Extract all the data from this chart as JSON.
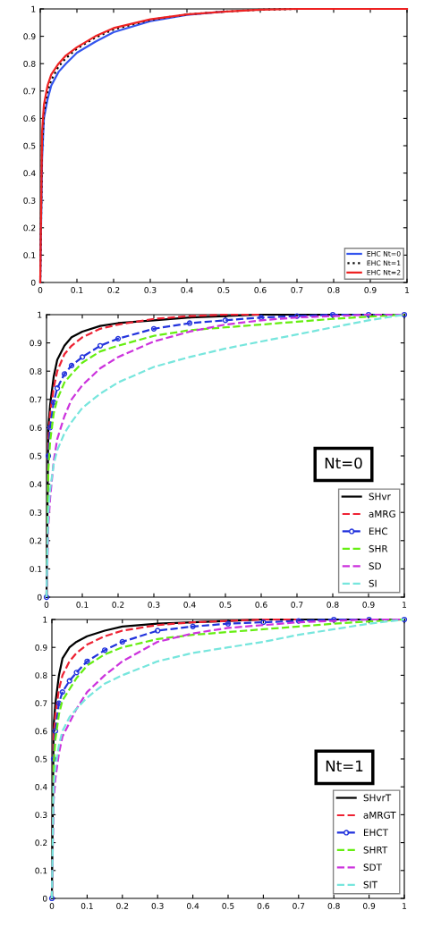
{
  "chart_data": [
    {
      "type": "line",
      "x": [
        0,
        0.005,
        0.01,
        0.02,
        0.03,
        0.05,
        0.07,
        0.1,
        0.15,
        0.2,
        0.3,
        0.4,
        0.5,
        0.6,
        0.7,
        0.8,
        0.9,
        1
      ],
      "xlim": [
        0,
        1
      ],
      "ylim": [
        0,
        1
      ],
      "xticks": [
        0,
        0.1,
        0.2,
        0.3,
        0.4,
        0.5,
        0.6,
        0.7,
        0.8,
        0.9,
        1
      ],
      "yticks": [
        0,
        0.1,
        0.2,
        0.3,
        0.4,
        0.5,
        0.6,
        0.7,
        0.8,
        0.9,
        1
      ],
      "grid": false,
      "legend": "bottom right",
      "series": [
        {
          "name": "EHC Nt=0",
          "color": "#3355ee",
          "line_style": "solid",
          "values": [
            0,
            0.45,
            0.6,
            0.67,
            0.72,
            0.77,
            0.8,
            0.84,
            0.88,
            0.915,
            0.955,
            0.978,
            0.99,
            null,
            null,
            null,
            null,
            null
          ]
        },
        {
          "name": "EHC Nt=1",
          "color": "#000000",
          "line_style": "dotted",
          "values": [
            0,
            0.5,
            0.62,
            0.7,
            0.74,
            0.79,
            0.82,
            0.855,
            0.895,
            0.925,
            0.96,
            0.98,
            0.99,
            0.997,
            1,
            1,
            1,
            1
          ]
        },
        {
          "name": "EHC Nt=2",
          "color": "#ee2222",
          "line_style": "solid",
          "values": [
            0,
            0.55,
            0.65,
            0.72,
            0.76,
            0.8,
            0.83,
            0.86,
            0.9,
            0.93,
            0.962,
            0.98,
            0.99,
            0.997,
            1,
            1,
            1,
            1
          ]
        }
      ]
    },
    {
      "type": "line",
      "x": [
        0,
        0.005,
        0.01,
        0.02,
        0.03,
        0.05,
        0.07,
        0.1,
        0.15,
        0.2,
        0.3,
        0.4,
        0.5,
        0.6,
        0.7,
        0.8,
        0.9,
        1
      ],
      "xlim": [
        0,
        1
      ],
      "ylim": [
        0,
        1
      ],
      "xticks": [
        0,
        0.1,
        0.2,
        0.3,
        0.4,
        0.5,
        0.6,
        0.7,
        0.8,
        0.9,
        1
      ],
      "yticks": [
        0,
        0.1,
        0.2,
        0.3,
        0.4,
        0.5,
        0.6,
        0.7,
        0.8,
        0.9,
        1
      ],
      "grid": false,
      "legend": "bottom right",
      "annotations": [
        "Nt=0"
      ],
      "series": [
        {
          "name": "SHvr",
          "color": "#000000",
          "line_style": "solid",
          "values": [
            0,
            0.6,
            0.68,
            0.78,
            0.84,
            0.89,
            0.92,
            0.94,
            0.96,
            0.97,
            0.98,
            0.99,
            0.995,
            1,
            1,
            1,
            1,
            1
          ]
        },
        {
          "name": "aMRG",
          "color": "#ee2233",
          "line_style": "dashed",
          "values": [
            0,
            0.55,
            0.65,
            0.74,
            0.8,
            0.86,
            0.89,
            0.92,
            0.95,
            0.965,
            0.985,
            0.995,
            1,
            1,
            null,
            null,
            null,
            null
          ]
        },
        {
          "name": "EHC",
          "color": "#2233dd",
          "line_style": "dashed",
          "marker": "circle",
          "values": [
            0,
            0.5,
            0.6,
            0.69,
            0.74,
            0.79,
            0.82,
            0.85,
            0.89,
            0.915,
            0.95,
            0.97,
            0.98,
            0.99,
            0.995,
            1,
            1,
            1
          ]
        },
        {
          "name": "SHR",
          "color": "#66ee11",
          "line_style": "dashed",
          "values": [
            0,
            0.45,
            0.55,
            0.65,
            0.7,
            0.76,
            0.79,
            0.83,
            0.87,
            0.89,
            0.925,
            0.945,
            0.955,
            0.965,
            0.975,
            0.985,
            0.993,
            1
          ]
        },
        {
          "name": "SD",
          "color": "#cc33dd",
          "line_style": "dashed",
          "values": [
            0,
            0.25,
            0.35,
            0.48,
            0.56,
            0.64,
            0.7,
            0.75,
            0.81,
            0.85,
            0.905,
            0.94,
            0.965,
            0.98,
            0.99,
            0.995,
            1,
            1
          ]
        },
        {
          "name": "SI",
          "color": "#77e6dd",
          "line_style": "dashed",
          "values": [
            0,
            0.3,
            0.38,
            0.47,
            0.52,
            0.58,
            0.62,
            0.67,
            0.72,
            0.76,
            0.815,
            0.85,
            0.88,
            0.905,
            0.93,
            0.955,
            0.98,
            1
          ]
        }
      ]
    },
    {
      "type": "line",
      "x": [
        0,
        0.005,
        0.01,
        0.02,
        0.03,
        0.05,
        0.07,
        0.1,
        0.15,
        0.2,
        0.3,
        0.4,
        0.5,
        0.6,
        0.7,
        0.8,
        0.9,
        1
      ],
      "xlim": [
        0,
        1
      ],
      "ylim": [
        0,
        1
      ],
      "xticks": [
        0,
        0.1,
        0.2,
        0.3,
        0.4,
        0.5,
        0.6,
        0.7,
        0.8,
        0.9,
        1
      ],
      "yticks": [
        0,
        0.1,
        0.2,
        0.3,
        0.4,
        0.5,
        0.6,
        0.7,
        0.8,
        0.9,
        1
      ],
      "grid": false,
      "legend": "bottom right",
      "annotations": [
        "Nt=1"
      ],
      "series": [
        {
          "name": "SHvrT",
          "color": "#000000",
          "line_style": "solid",
          "values": [
            0,
            0.62,
            0.7,
            0.8,
            0.86,
            0.9,
            0.92,
            0.94,
            0.96,
            0.975,
            0.985,
            0.99,
            0.995,
            1,
            1,
            1,
            1,
            1
          ]
        },
        {
          "name": "aMRGT",
          "color": "#ee2233",
          "line_style": "dashed",
          "values": [
            0,
            0.58,
            0.66,
            0.75,
            0.8,
            0.85,
            0.88,
            0.91,
            0.94,
            0.96,
            0.98,
            0.99,
            0.995,
            1,
            1,
            null,
            null,
            null
          ]
        },
        {
          "name": "EHCT",
          "color": "#2233dd",
          "line_style": "dashed",
          "marker": "circle",
          "values": [
            0,
            0.5,
            0.6,
            0.7,
            0.74,
            0.78,
            0.81,
            0.85,
            0.89,
            0.92,
            0.96,
            0.975,
            0.985,
            0.99,
            0.995,
            1,
            1,
            1
          ]
        },
        {
          "name": "SHRT",
          "color": "#66ee11",
          "line_style": "dashed",
          "values": [
            0,
            0.48,
            0.57,
            0.66,
            0.71,
            0.75,
            0.79,
            0.835,
            0.875,
            0.9,
            0.93,
            0.945,
            0.955,
            0.965,
            0.975,
            0.985,
            0.993,
            1
          ]
        },
        {
          "name": "SDT",
          "color": "#cc33dd",
          "line_style": "dashed",
          "values": [
            0,
            0.35,
            0.43,
            0.52,
            0.58,
            0.63,
            0.68,
            0.74,
            0.8,
            0.85,
            0.92,
            0.95,
            0.97,
            0.98,
            0.99,
            0.995,
            1,
            1
          ]
        },
        {
          "name": "SIT",
          "color": "#77e6dd",
          "line_style": "dashed",
          "values": [
            0,
            0.4,
            0.47,
            0.55,
            0.6,
            0.65,
            0.68,
            0.72,
            0.77,
            0.8,
            0.85,
            0.88,
            0.9,
            0.92,
            0.945,
            0.965,
            0.985,
            1
          ]
        }
      ]
    }
  ]
}
